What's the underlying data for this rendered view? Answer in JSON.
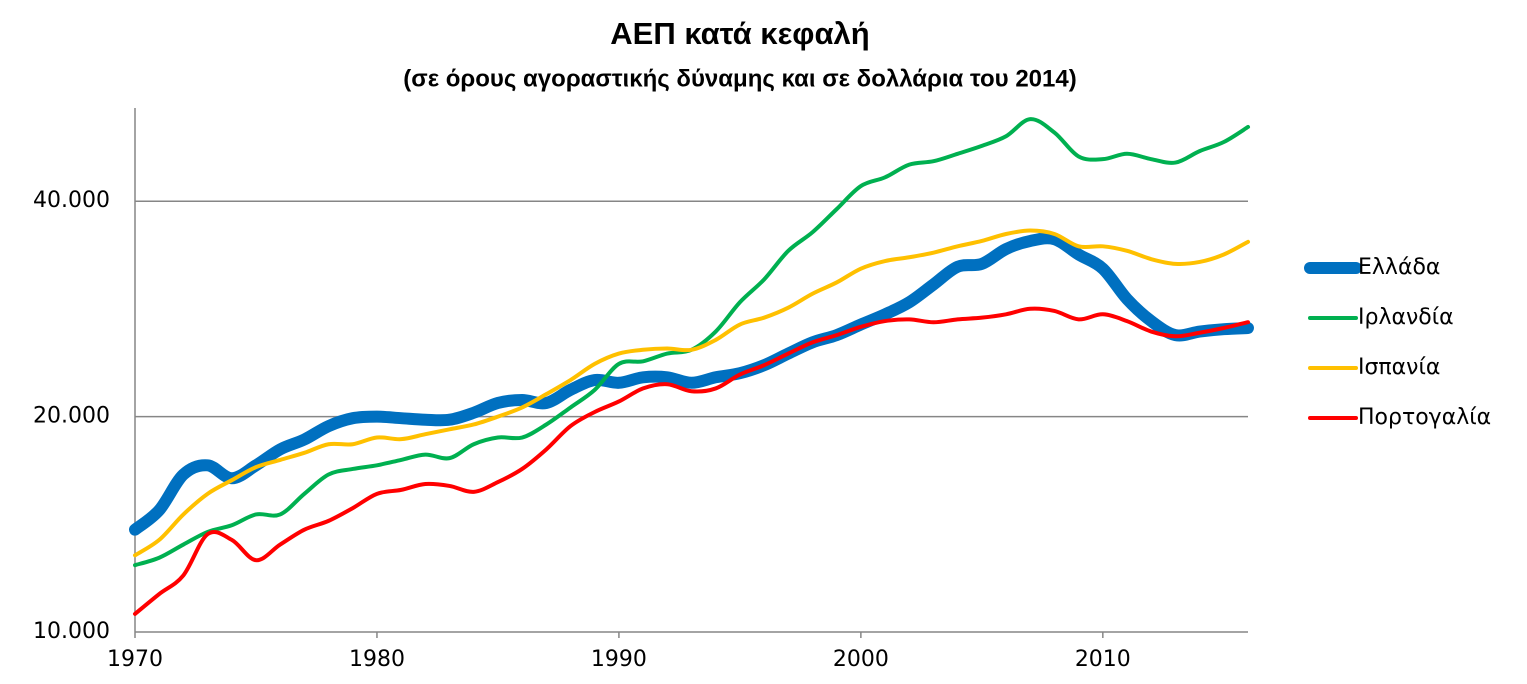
{
  "chart_data": {
    "type": "line",
    "title": "ΑΕΠ κατά κεφαλή",
    "subtitle": "(σε όρους αγοραστικής δύναμης και σε δολλάρια του 2014)",
    "x": [
      1970,
      1971,
      1972,
      1973,
      1974,
      1975,
      1976,
      1977,
      1978,
      1979,
      1980,
      1981,
      1982,
      1983,
      1984,
      1985,
      1986,
      1987,
      1988,
      1989,
      1990,
      1991,
      1992,
      1993,
      1994,
      1995,
      1996,
      1997,
      1998,
      1999,
      2000,
      2001,
      2002,
      2003,
      2004,
      2005,
      2006,
      2007,
      2008,
      2009,
      2010,
      2011,
      2012,
      2013,
      2014,
      2015,
      2016
    ],
    "series": [
      {
        "name": "Ελλάδα",
        "color": "#0070c0",
        "line_width": 12,
        "values": [
          13900,
          14800,
          16600,
          17100,
          16400,
          17100,
          18000,
          18580,
          19400,
          19900,
          20000,
          19900,
          19800,
          19800,
          20250,
          20900,
          21100,
          20900,
          21800,
          22500,
          22300,
          22700,
          22700,
          22300,
          22700,
          23000,
          23600,
          24500,
          25400,
          26000,
          26900,
          27800,
          28900,
          30600,
          32400,
          32700,
          34300,
          35200,
          35400,
          33700,
          32200,
          29200,
          27200,
          26000,
          26300,
          26500,
          26600
        ]
      },
      {
        "name": "Ιρλανδία",
        "color": "#00b050",
        "line_width": 4,
        "values": [
          12400,
          12700,
          13250,
          13800,
          14100,
          14600,
          14600,
          15600,
          16600,
          16900,
          17100,
          17400,
          17700,
          17500,
          18300,
          18700,
          18700,
          19500,
          20600,
          21800,
          23700,
          23900,
          24500,
          24800,
          26300,
          28900,
          31100,
          34100,
          36200,
          39000,
          42000,
          43200,
          45000,
          45500,
          46600,
          47800,
          49300,
          52100,
          49900,
          46200,
          45800,
          46600,
          45800,
          45300,
          47000,
          48400,
          50800
        ]
      },
      {
        "name": "Ισπανία",
        "color": "#ffc000",
        "line_width": 4,
        "values": [
          12800,
          13450,
          14600,
          15600,
          16300,
          17000,
          17400,
          17800,
          18300,
          18300,
          18700,
          18600,
          18900,
          19200,
          19500,
          20000,
          20600,
          21500,
          22500,
          23700,
          24500,
          24800,
          24900,
          24800,
          25600,
          26900,
          27500,
          28400,
          29700,
          30800,
          32200,
          33000,
          33400,
          33900,
          34600,
          35200,
          36000,
          36400,
          36000,
          34600,
          34600,
          34100,
          33200,
          32700,
          32900,
          33700,
          35100
        ]
      },
      {
        "name": "Πορτογαλία",
        "color": "#ff0000",
        "line_width": 4,
        "values": [
          10600,
          11300,
          12000,
          13700,
          13450,
          12600,
          13250,
          13900,
          14300,
          14900,
          15600,
          15800,
          16100,
          16000,
          15700,
          16200,
          16900,
          18000,
          19400,
          20300,
          21000,
          21900,
          22200,
          21700,
          21900,
          22900,
          23600,
          24500,
          25400,
          26000,
          26700,
          27200,
          27350,
          27100,
          27350,
          27500,
          27800,
          28300,
          28100,
          27350,
          27800,
          27200,
          26300,
          25900,
          26200,
          26600,
          27100
        ]
      }
    ],
    "xlim": [
      1970,
      2016
    ],
    "xticks": [
      1970,
      1980,
      1990,
      2000,
      2010
    ],
    "ylim": [
      10000,
      54000
    ],
    "yticks": [
      {
        "value": 10000,
        "label": "10.000"
      },
      {
        "value": 20000,
        "label": "20.000"
      },
      {
        "value": 40000,
        "label": "40.000"
      }
    ],
    "log_scale_y": true,
    "grid": true,
    "legend": "right"
  }
}
